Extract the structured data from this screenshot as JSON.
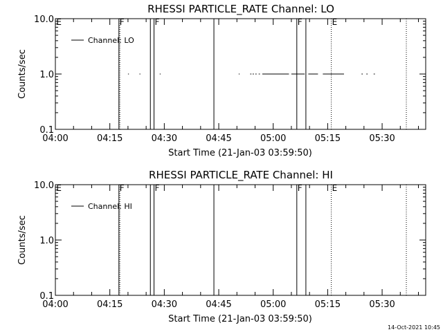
{
  "footer": {
    "timestamp": "14-Oct-2021 10:45"
  },
  "chart_data": [
    {
      "type": "line",
      "title": "RHESSI PARTICLE_RATE Channel: LO",
      "xlabel": "Start Time (21-Jan-03 03:59:50)",
      "ylabel": "Counts/sec",
      "y_scale": "log",
      "ylim": [
        0.1,
        10.0
      ],
      "y_ticks": [
        "0.1",
        "1.0",
        "10.0"
      ],
      "xlim": [
        "04:00",
        "05:42"
      ],
      "x_ticks": [
        "04:00",
        "04:15",
        "04:30",
        "04:45",
        "05:00",
        "05:15",
        "05:30"
      ],
      "legend": {
        "placement": "top-left",
        "entries": [
          "Channel: LO"
        ]
      },
      "series": [
        {
          "name": "Channel: LO",
          "segments": [
            {
              "x": [
                "04:20:00",
                "04:20:15"
              ],
              "y": 1.0
            },
            {
              "x": [
                "04:23:10",
                "04:23:25"
              ],
              "y": 1.0
            },
            {
              "x": [
                "04:28:45",
                "04:29:00"
              ],
              "y": 1.0
            },
            {
              "x": [
                "04:50:30",
                "04:50:45"
              ],
              "y": 1.0
            },
            {
              "x": [
                "04:53:40",
                "04:54:00"
              ],
              "y": 1.0
            },
            {
              "x": [
                "04:54:20",
                "04:54:40"
              ],
              "y": 1.0
            },
            {
              "x": [
                "04:55:05",
                "04:55:25"
              ],
              "y": 1.0
            },
            {
              "x": [
                "04:56:00",
                "04:56:20"
              ],
              "y": 1.0
            },
            {
              "x": [
                "04:57:00",
                "05:04:20"
              ],
              "y": 1.0
            },
            {
              "x": [
                "05:05:00",
                "05:08:40"
              ],
              "y": 1.0
            },
            {
              "x": [
                "05:09:40",
                "05:12:20"
              ],
              "y": 1.0
            },
            {
              "x": [
                "05:13:40",
                "05:19:30"
              ],
              "y": 1.0
            },
            {
              "x": [
                "05:24:20",
                "05:24:40"
              ],
              "y": 1.0
            },
            {
              "x": [
                "05:25:40",
                "05:26:00"
              ],
              "y": 1.0
            },
            {
              "x": [
                "05:27:40",
                "05:28:00"
              ],
              "y": 1.0
            }
          ]
        }
      ],
      "flag_lines": [
        {
          "time": "04:00:05",
          "label": "E",
          "style": "none"
        },
        {
          "time": "04:17:30",
          "label": "F",
          "style": "solid"
        },
        {
          "time": "04:17:45",
          "label": "",
          "style": "dotted"
        },
        {
          "time": "04:26:10",
          "label": "",
          "style": "solid"
        },
        {
          "time": "04:27:10",
          "label": "F",
          "style": "solid"
        },
        {
          "time": "04:43:40",
          "label": "",
          "style": "solid"
        },
        {
          "time": "05:06:30",
          "label": "F",
          "style": "solid"
        },
        {
          "time": "05:09:00",
          "label": "",
          "style": "solid"
        },
        {
          "time": "05:16:00",
          "label": "E",
          "style": "dotted"
        },
        {
          "time": "05:36:40",
          "label": "",
          "style": "dotted"
        }
      ]
    },
    {
      "type": "line",
      "title": "RHESSI PARTICLE_RATE Channel: HI",
      "xlabel": "Start Time (21-Jan-03 03:59:50)",
      "ylabel": "Counts/sec",
      "y_scale": "log",
      "ylim": [
        0.1,
        10.0
      ],
      "y_ticks": [
        "0.1",
        "1.0",
        "10.0"
      ],
      "xlim": [
        "04:00",
        "05:42"
      ],
      "x_ticks": [
        "04:00",
        "04:15",
        "04:30",
        "04:45",
        "05:00",
        "05:15",
        "05:30"
      ],
      "legend": {
        "placement": "top-left",
        "entries": [
          "Channel: HI"
        ]
      },
      "series": [
        {
          "name": "Channel: HI",
          "segments": []
        }
      ],
      "flag_lines": [
        {
          "time": "04:00:05",
          "label": "E",
          "style": "none"
        },
        {
          "time": "04:17:30",
          "label": "F",
          "style": "solid"
        },
        {
          "time": "04:17:45",
          "label": "",
          "style": "dotted"
        },
        {
          "time": "04:26:10",
          "label": "",
          "style": "solid"
        },
        {
          "time": "04:27:10",
          "label": "F",
          "style": "solid"
        },
        {
          "time": "04:43:40",
          "label": "",
          "style": "solid"
        },
        {
          "time": "05:06:30",
          "label": "F",
          "style": "solid"
        },
        {
          "time": "05:09:00",
          "label": "",
          "style": "solid"
        },
        {
          "time": "05:16:00",
          "label": "E",
          "style": "dotted"
        },
        {
          "time": "05:36:40",
          "label": "",
          "style": "dotted"
        }
      ]
    }
  ]
}
